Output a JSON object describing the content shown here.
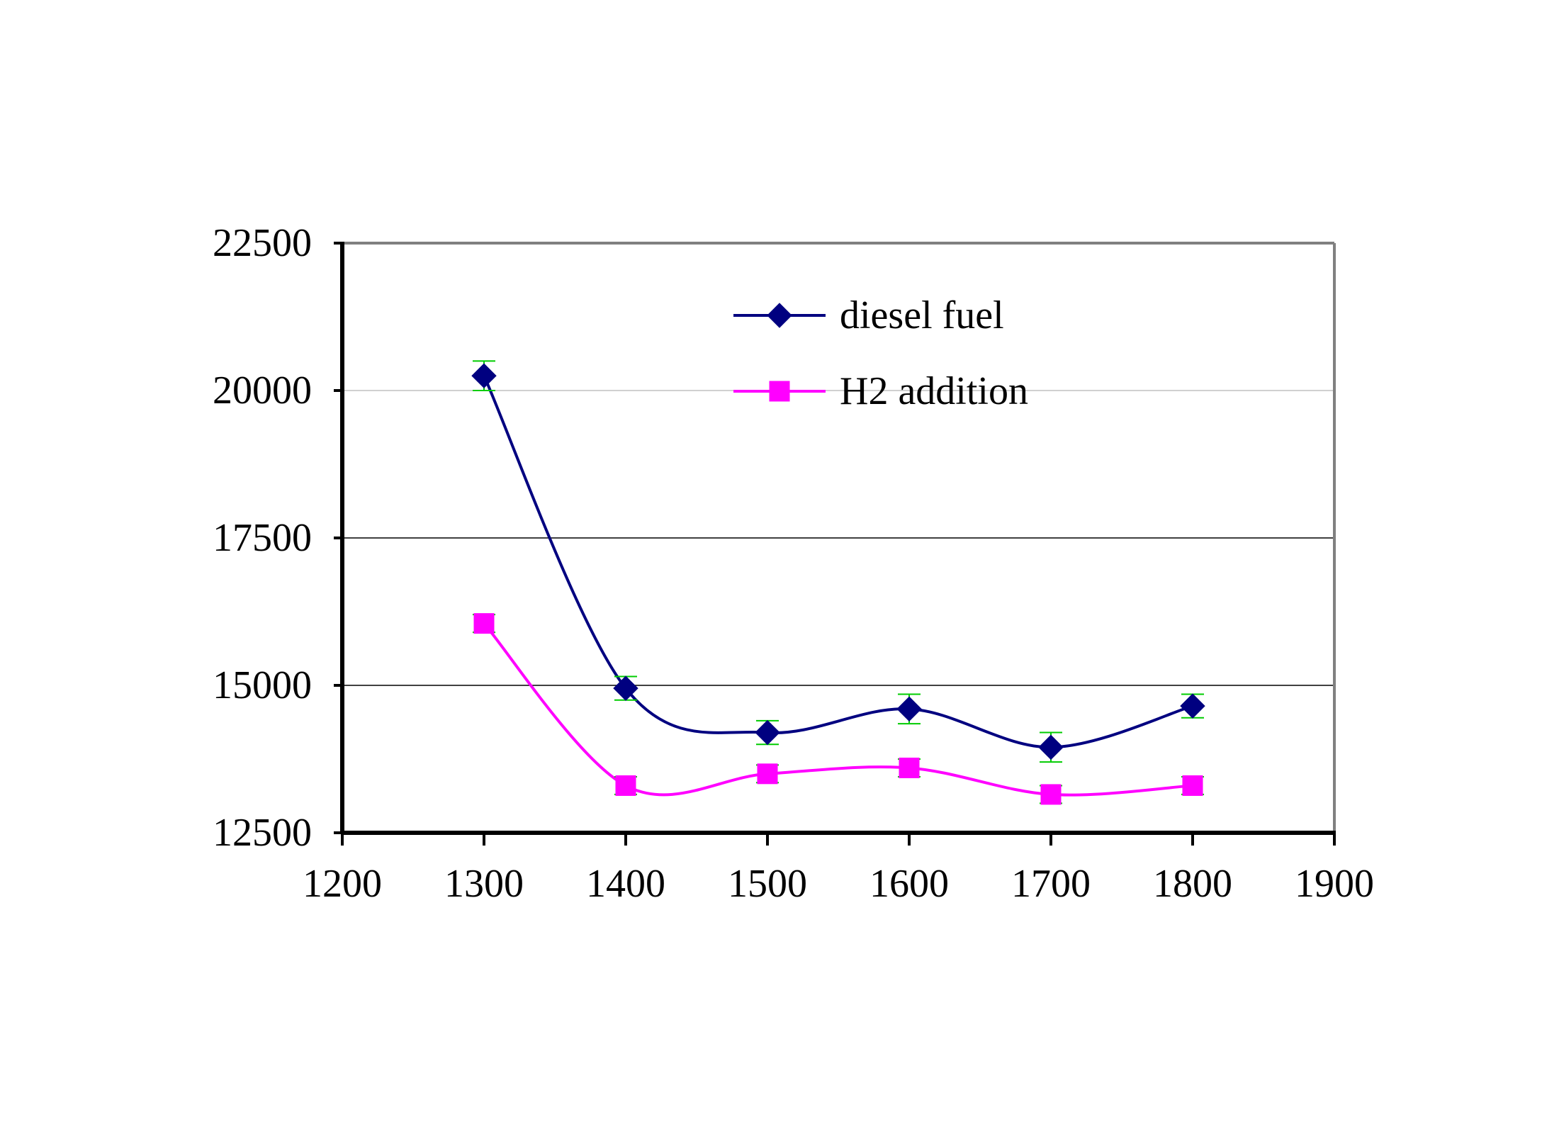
{
  "chart_data": {
    "type": "line",
    "title": "",
    "xlabel": "",
    "ylabel": "",
    "x": [
      1300,
      1400,
      1500,
      1600,
      1700,
      1800
    ],
    "xlim": [
      1200,
      1900
    ],
    "ylim": [
      12500,
      22500
    ],
    "xticks": [
      "1200",
      "1300",
      "1400",
      "1500",
      "1600",
      "1700",
      "1800",
      "1900"
    ],
    "yticks": [
      "12500",
      "15000",
      "17500",
      "20000",
      "22500"
    ],
    "xtick_values": [
      1200,
      1300,
      1400,
      1500,
      1600,
      1700,
      1800,
      1900
    ],
    "ytick_values": [
      12500,
      15000,
      17500,
      20000,
      22500
    ],
    "grid": true,
    "legend_position": "top-center",
    "smooth": true,
    "error_bars": true,
    "series": [
      {
        "name": "diesel fuel",
        "values": [
          20250,
          14950,
          14200,
          14600,
          13950,
          14650
        ],
        "error": [
          250,
          200,
          200,
          250,
          250,
          200
        ],
        "color": "#000080",
        "marker": "diamond"
      },
      {
        "name": "H2 addition",
        "values": [
          16050,
          13300,
          13500,
          13600,
          13150,
          13300
        ],
        "error": [
          150,
          150,
          150,
          150,
          150,
          150
        ],
        "color": "#FF00FF",
        "marker": "square"
      }
    ],
    "colors": {
      "axis": "#000000",
      "plot_border": "#808080",
      "grid": "#000000",
      "grid_top": "#c0c0c0",
      "error_bar": "#00cc00"
    }
  }
}
